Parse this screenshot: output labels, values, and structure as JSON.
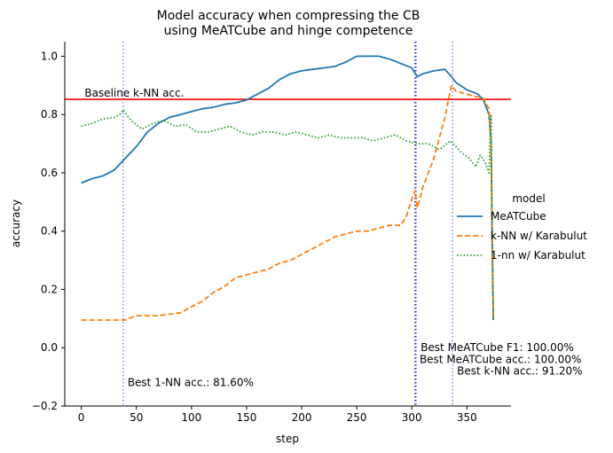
{
  "chart_data": {
    "type": "line",
    "title": "Model accuracy when compressing the CB\nusing MeATCube and hinge competence",
    "xlabel": "step",
    "ylabel": "accuracy",
    "xlim": [
      -15,
      390
    ],
    "ylim": [
      -0.2,
      1.05
    ],
    "xticks": [
      0,
      50,
      100,
      150,
      200,
      250,
      300,
      350
    ],
    "yticks": [
      -0.2,
      0.0,
      0.2,
      0.4,
      0.6,
      0.8,
      1.0
    ],
    "xtick_labels": [
      "0",
      "50",
      "100",
      "150",
      "200",
      "250",
      "300",
      "350"
    ],
    "ytick_labels": [
      "−0.2",
      "0.0",
      "0.2",
      "0.4",
      "0.6",
      "0.8",
      "1.0"
    ],
    "grid": false,
    "legend": {
      "title": "model",
      "placement": "right"
    },
    "series": [
      {
        "name": "MeATCube",
        "color": "#1f77b4",
        "dash": "solid",
        "x": [
          0,
          10,
          20,
          30,
          40,
          50,
          60,
          70,
          80,
          90,
          100,
          110,
          120,
          130,
          140,
          150,
          160,
          170,
          180,
          190,
          200,
          210,
          220,
          230,
          240,
          250,
          260,
          270,
          280,
          290,
          300,
          305,
          310,
          320,
          330,
          336,
          340,
          350,
          360,
          365,
          370,
          372,
          373,
          374
        ],
        "y": [
          0.565,
          0.58,
          0.59,
          0.61,
          0.65,
          0.69,
          0.74,
          0.77,
          0.79,
          0.8,
          0.81,
          0.82,
          0.825,
          0.835,
          0.84,
          0.85,
          0.87,
          0.89,
          0.92,
          0.94,
          0.95,
          0.955,
          0.96,
          0.965,
          0.98,
          1.0,
          1.0,
          1.0,
          0.99,
          0.975,
          0.96,
          0.93,
          0.94,
          0.95,
          0.955,
          0.93,
          0.91,
          0.885,
          0.87,
          0.85,
          0.8,
          0.7,
          0.35,
          0.095
        ]
      },
      {
        "name": "k-NN w/ Karabulut",
        "color": "#ff7f0e",
        "dash": "dashed",
        "x": [
          0,
          20,
          40,
          50,
          70,
          90,
          100,
          110,
          120,
          130,
          140,
          150,
          160,
          170,
          180,
          190,
          200,
          210,
          220,
          230,
          240,
          250,
          260,
          270,
          280,
          290,
          295,
          300,
          303,
          305,
          310,
          320,
          330,
          336,
          340,
          350,
          360,
          365,
          370,
          372,
          373,
          374
        ],
        "y": [
          0.095,
          0.095,
          0.095,
          0.11,
          0.11,
          0.12,
          0.14,
          0.16,
          0.19,
          0.21,
          0.24,
          0.25,
          0.26,
          0.27,
          0.29,
          0.3,
          0.32,
          0.34,
          0.36,
          0.38,
          0.39,
          0.4,
          0.4,
          0.41,
          0.42,
          0.42,
          0.45,
          0.51,
          0.54,
          0.48,
          0.55,
          0.65,
          0.79,
          0.9,
          0.88,
          0.87,
          0.86,
          0.855,
          0.82,
          0.7,
          0.3,
          0.095
        ]
      },
      {
        "name": "1-nn w/ Karabulut",
        "color": "#2ca02c",
        "dash": "dotted",
        "x": [
          0,
          10,
          20,
          30,
          35,
          38,
          45,
          55,
          65,
          75,
          85,
          95,
          105,
          115,
          125,
          135,
          145,
          155,
          165,
          175,
          185,
          195,
          205,
          215,
          225,
          235,
          245,
          255,
          265,
          275,
          285,
          295,
          305,
          315,
          325,
          335,
          345,
          352,
          358,
          362,
          366,
          370,
          372,
          373,
          374
        ],
        "y": [
          0.76,
          0.77,
          0.785,
          0.79,
          0.8,
          0.816,
          0.78,
          0.75,
          0.77,
          0.78,
          0.76,
          0.765,
          0.74,
          0.74,
          0.75,
          0.76,
          0.74,
          0.73,
          0.74,
          0.74,
          0.73,
          0.74,
          0.73,
          0.72,
          0.73,
          0.72,
          0.72,
          0.72,
          0.71,
          0.72,
          0.73,
          0.71,
          0.7,
          0.7,
          0.68,
          0.71,
          0.67,
          0.65,
          0.62,
          0.66,
          0.64,
          0.6,
          0.8,
          0.4,
          0.095
        ]
      }
    ],
    "hlines": [
      {
        "y": 0.852,
        "color": "#ff0000",
        "label": "Baseline k-NN acc."
      }
    ],
    "vlines": [
      {
        "x": 38,
        "color": "#7b7bff",
        "label": "Best 1-NN acc.: 81.60%"
      },
      {
        "x": 303,
        "color": "#0000cc",
        "label": "Best MeATCube acc.: 100.00%"
      },
      {
        "x": 304,
        "color": "#7b7bff",
        "label": "Best MeATCube F1: 100.00%"
      },
      {
        "x": 337,
        "color": "#7b7bff",
        "label": "Best k-NN acc.: 91.20%"
      }
    ]
  }
}
